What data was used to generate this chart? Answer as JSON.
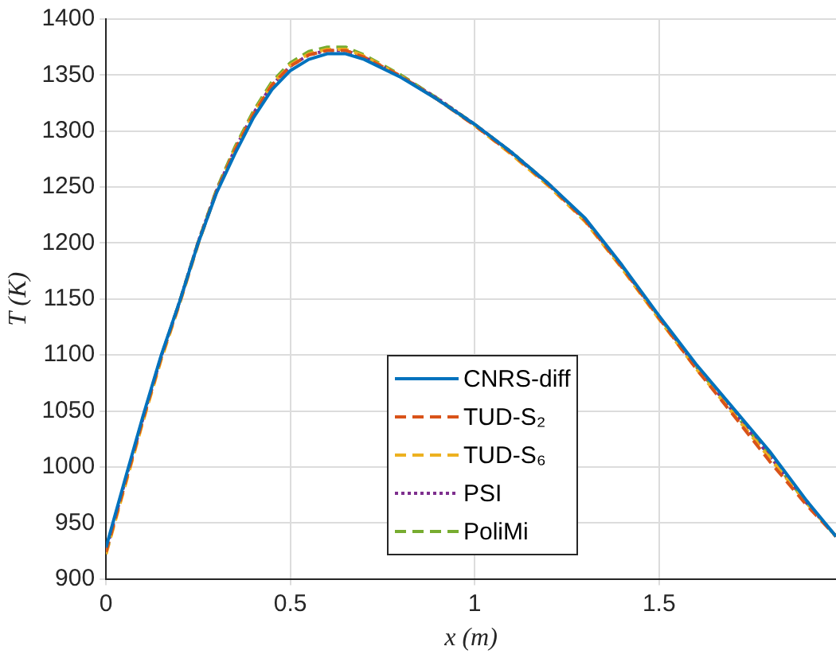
{
  "chart_data": {
    "type": "line",
    "xlabel": "x (m)",
    "ylabel": "T (K)",
    "xlim": [
      0,
      1.98
    ],
    "xticks": [
      0,
      0.5,
      1,
      1.5
    ],
    "ylim": [
      900,
      1400
    ],
    "yticks": [
      900,
      950,
      1000,
      1050,
      1100,
      1150,
      1200,
      1250,
      1300,
      1350,
      1400
    ],
    "grid": true,
    "legend": "bottom",
    "marker": "none",
    "x": [
      0,
      0.05,
      0.1,
      0.15,
      0.2,
      0.25,
      0.3,
      0.35,
      0.4,
      0.45,
      0.5,
      0.55,
      0.6,
      0.65,
      0.7,
      0.8,
      0.9,
      1.0,
      1.1,
      1.2,
      1.3,
      1.4,
      1.5,
      1.6,
      1.7,
      1.8,
      1.9,
      1.98
    ],
    "series": [
      {
        "name": "CNRS-diff",
        "color": "#0072bd",
        "line_style": "solid",
        "values": [
          928,
          987,
          1045,
          1100,
          1148,
          1200,
          1245,
          1280,
          1312,
          1337,
          1354,
          1364,
          1369,
          1369,
          1364,
          1348,
          1328,
          1306,
          1281,
          1253,
          1222,
          1180,
          1135,
          1092,
          1053,
          1014,
          970,
          938
        ]
      },
      {
        "name": "TUD-S₂",
        "color": "#d95319",
        "line_style": "dashed",
        "values": [
          924,
          983,
          1042,
          1098,
          1147,
          1200,
          1246,
          1283,
          1315,
          1341,
          1358,
          1368,
          1372,
          1372,
          1366,
          1349,
          1328,
          1305,
          1280,
          1252,
          1220,
          1178,
          1133,
          1088,
          1047,
          1005,
          966,
          938
        ]
      },
      {
        "name": "TUD-S₆",
        "color": "#edb120",
        "line_style": "dashed",
        "values": [
          922,
          981,
          1040,
          1096,
          1146,
          1199,
          1246,
          1284,
          1316,
          1342,
          1359,
          1369,
          1373,
          1373,
          1367,
          1349,
          1328,
          1305,
          1279,
          1251,
          1219,
          1177,
          1132,
          1088,
          1048,
          1008,
          968,
          938
        ]
      },
      {
        "name": "PSI",
        "color": "#7e2f8e",
        "line_style": "dotted",
        "values": [
          925,
          985,
          1043,
          1099,
          1148,
          1201,
          1247,
          1284,
          1316,
          1341,
          1358,
          1368,
          1372,
          1372,
          1366,
          1349,
          1329,
          1306,
          1281,
          1253,
          1221,
          1179,
          1134,
          1090,
          1050,
          1010,
          968,
          938
        ]
      },
      {
        "name": "PoliMi",
        "color": "#77ac30",
        "line_style": "dashed",
        "values": [
          923,
          983,
          1042,
          1098,
          1148,
          1201,
          1248,
          1286,
          1318,
          1344,
          1361,
          1371,
          1375,
          1375,
          1368,
          1350,
          1329,
          1306,
          1281,
          1253,
          1221,
          1179,
          1134,
          1090,
          1050,
          1010,
          968,
          938
        ]
      }
    ]
  }
}
